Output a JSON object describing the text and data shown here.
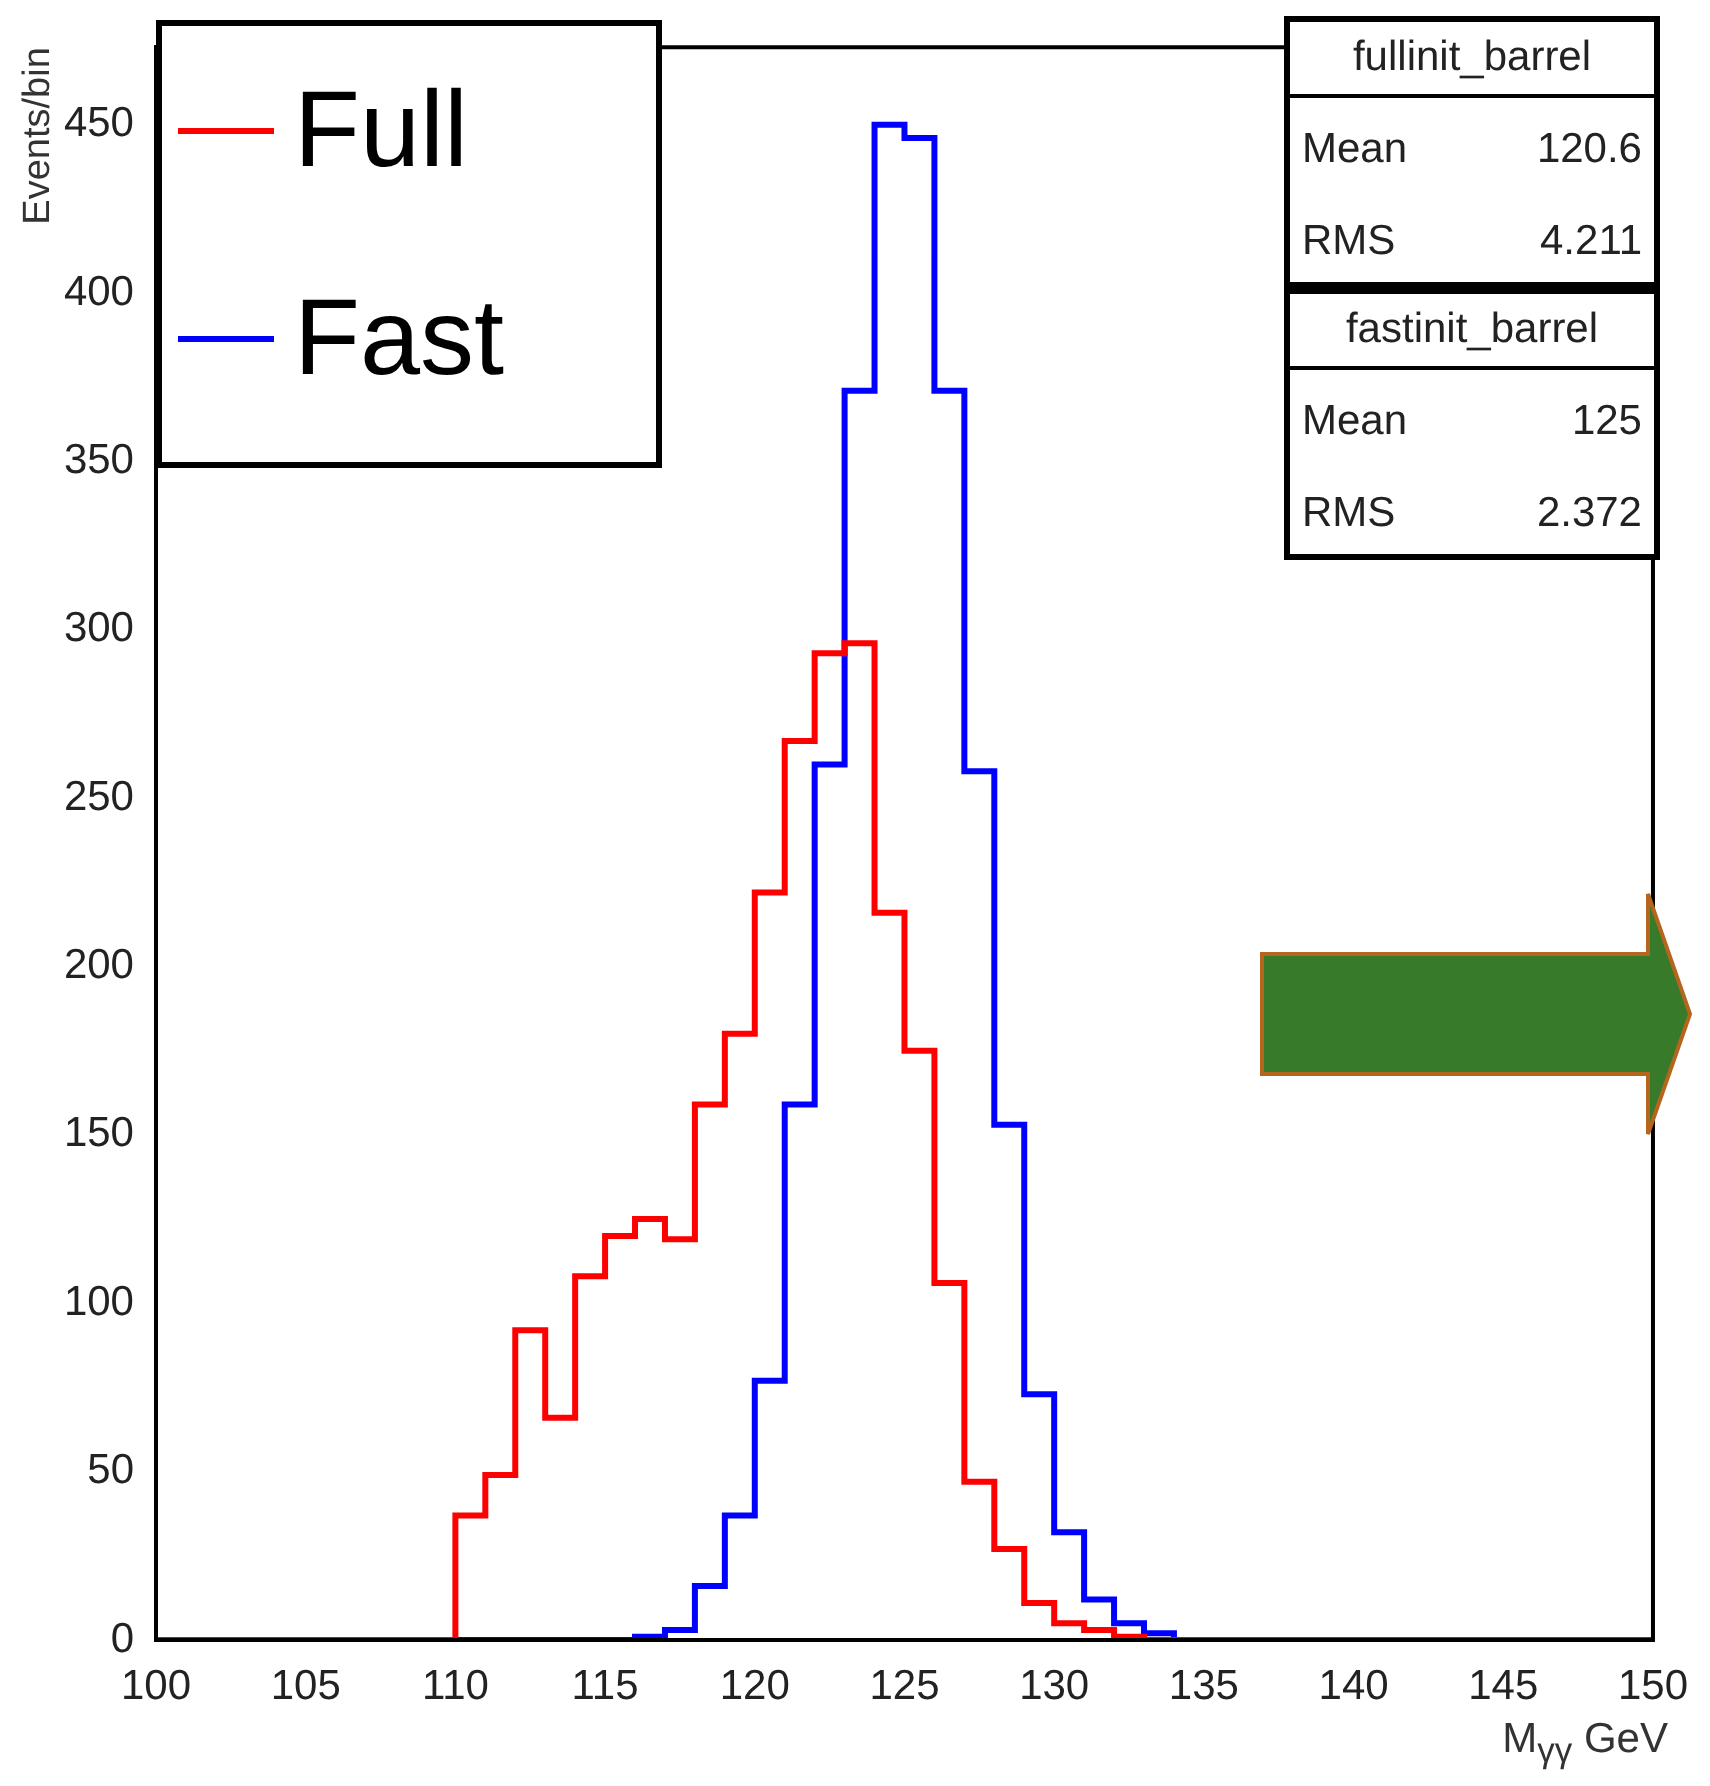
{
  "chart_data": {
    "type": "histogram",
    "xlabel": "M$_{γγ}$ GeV",
    "ylabel": "Events/bin",
    "bins": [
      100,
      101,
      102,
      103,
      104,
      105,
      106,
      107,
      108,
      109,
      110,
      111,
      112,
      113,
      114,
      115,
      116,
      117,
      118,
      119,
      120,
      121,
      122,
      123,
      124,
      125,
      126,
      127,
      128,
      129,
      130,
      131,
      132,
      133,
      134,
      135,
      136,
      137,
      138,
      139,
      140,
      141,
      142,
      143,
      144,
      145,
      146,
      147,
      148,
      149,
      150
    ],
    "series": [
      {
        "name": "Full",
        "color": "#ff0000",
        "values": [
          0,
          0,
          0,
          0,
          0,
          0,
          0,
          0,
          0,
          0,
          37,
          49,
          92,
          66,
          108,
          120,
          125,
          119,
          159,
          180,
          222,
          267,
          293,
          296,
          216,
          175,
          106,
          47,
          27,
          11,
          5,
          3,
          1,
          0,
          0,
          0,
          0,
          0,
          0,
          0,
          0,
          0,
          0,
          0,
          0,
          0,
          0,
          0,
          0,
          0
        ]
      },
      {
        "name": "Fast",
        "color": "#0000ff",
        "values": [
          0,
          0,
          0,
          0,
          0,
          0,
          0,
          0,
          0,
          0,
          0,
          0,
          0,
          0,
          0,
          0,
          1,
          3,
          16,
          37,
          77,
          159,
          260,
          371,
          450,
          446,
          371,
          258,
          153,
          73,
          32,
          12,
          5,
          2,
          0,
          0,
          0,
          0,
          0,
          0,
          0,
          0,
          0,
          0,
          0,
          0,
          0,
          0,
          0,
          0
        ]
      }
    ],
    "xlim": [
      100,
      150
    ],
    "xticks": [
      100,
      105,
      110,
      115,
      120,
      125,
      130,
      135,
      140,
      145,
      150
    ],
    "ylim": [
      0,
      473
    ],
    "yticks": [
      0,
      50,
      100,
      150,
      200,
      250,
      300,
      350,
      400,
      450
    ],
    "legend": "top left",
    "annotations": [
      "fullinit_barrel",
      "Mean 120.6",
      "RMS 4.211",
      "fastinit_barrel",
      "Mean 125",
      "RMS 2.372"
    ]
  }
}
